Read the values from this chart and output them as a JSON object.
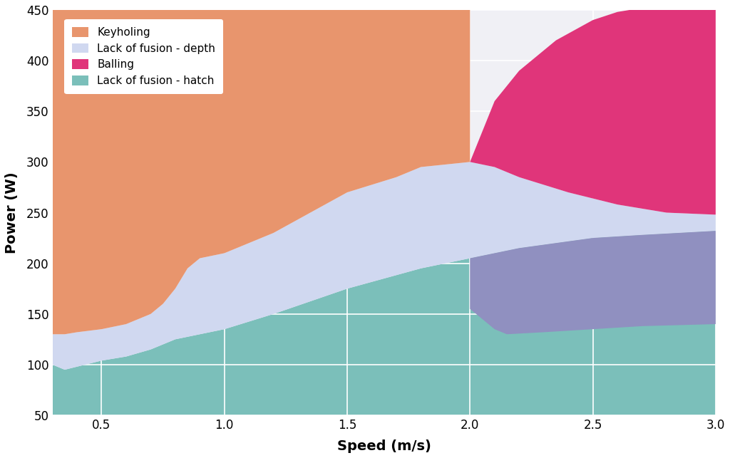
{
  "title": "",
  "xlabel": "Speed (m/s)",
  "ylabel": "Power (W)",
  "xlim": [
    0.3,
    3.0
  ],
  "ylim": [
    50,
    450
  ],
  "xticks": [
    0.5,
    1.0,
    1.5,
    2.0,
    2.5,
    3.0
  ],
  "yticks": [
    50,
    100,
    150,
    200,
    250,
    300,
    350,
    400,
    450
  ],
  "background_color": "#f5f5f8",
  "plot_bg_color": "#f0f0f5",
  "grid_color": "#ffffff",
  "colors": {
    "keyholing": "#E8956D",
    "lof_depth": "#D0D8F0",
    "balling": "#E0357A",
    "lof_hatch": "#7BBFBA",
    "balling_lower": "#9090C0"
  },
  "legend_labels": [
    "Keyholing",
    "Lack of fusion - depth",
    "Balling",
    "Lack of fusion - hatch"
  ],
  "legend_colors": [
    "#E8956D",
    "#D0D8F0",
    "#E0357A",
    "#7BBFBA"
  ],
  "figsize": [
    10.24,
    6.43
  ],
  "dpi": 100
}
